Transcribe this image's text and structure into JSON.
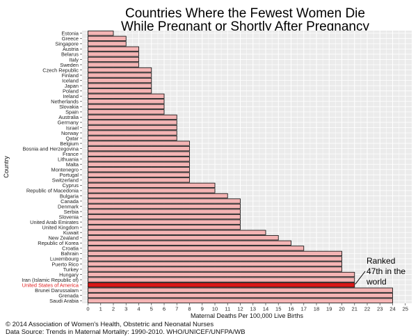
{
  "chart_data": {
    "type": "bar",
    "orientation": "horizontal",
    "title": "Countries Where the Fewest Women Die\nWhile Pregnant or Shortly After Pregnancy",
    "title_lines": [
      "Countries Where the Fewest Women Die",
      "While Pregnant or Shortly After Pregnancy"
    ],
    "xlabel": "Maternal Deaths Per 100,000 Live Births",
    "ylabel": "Country",
    "xlim": [
      0,
      25
    ],
    "xticks": [
      0,
      1,
      2,
      3,
      4,
      5,
      6,
      7,
      8,
      9,
      10,
      11,
      12,
      13,
      14,
      15,
      16,
      17,
      18,
      19,
      20,
      21,
      22,
      23,
      24,
      25
    ],
    "grid": true,
    "categories": [
      "Estonia",
      "Greece",
      "Singapore",
      "Austria",
      "Belarus",
      "Italy",
      "Sweden",
      "Czech Republic",
      "Finland",
      "Iceland",
      "Japan",
      "Poland",
      "Ireland",
      "Netherlands",
      "Slovakia",
      "Spain",
      "Australia",
      "Germany",
      "Israel",
      "Norway",
      "Qatar",
      "Belgium",
      "Bosnia and Herzegovina",
      "France",
      "Lithuania",
      "Malta",
      "Montenegro",
      "Portugal",
      "Switzerland",
      "Cyprus",
      "Republic of Macedonia",
      "Bulgaria",
      "Canada",
      "Denmark",
      "Serbia",
      "Slovenia",
      "United Arab Emirates",
      "United Kingdom",
      "Kuwait",
      "New Zealand",
      "Republic of Korea",
      "Croatia",
      "Bahrain",
      "Luxembourg",
      "Puerto Rico",
      "Turkey",
      "Hungary",
      "Iran (Islamic Republic of)",
      "United States of America",
      "Brunei Darussalam",
      "Grenada",
      "Saudi Arabia"
    ],
    "values": [
      2,
      3,
      3,
      4,
      4,
      4,
      4,
      5,
      5,
      5,
      5,
      5,
      6,
      6,
      6,
      6,
      7,
      7,
      7,
      7,
      7,
      8,
      8,
      8,
      8,
      8,
      8,
      8,
      8,
      10,
      10,
      11,
      12,
      12,
      12,
      12,
      12,
      12,
      14,
      15,
      16,
      17,
      20,
      20,
      20,
      20,
      21,
      21,
      21,
      24,
      24,
      24
    ],
    "highlight": "United States of America",
    "bar_color": "#f4b4b4",
    "highlight_color": "#d81818",
    "highlight_label_color": "#e02020",
    "plot_background": "#ebebeb",
    "annotation": {
      "text_lines": [
        "Ranked",
        "47th in the",
        "world"
      ],
      "value": 21
    }
  },
  "footer": {
    "copyright": "© 2014 Association of Women's Health, Obstetric and Neonatal Nurses",
    "source": "Data Source: Trends in Maternal Mortality: 1990-2010. WHO/UNICEF/UNFPA/WB"
  }
}
